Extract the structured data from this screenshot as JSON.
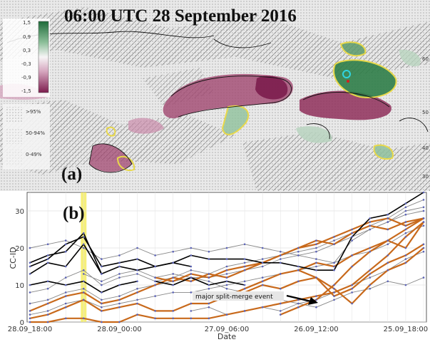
{
  "map_panel": {
    "title": "06:00 UTC 28 September 2016",
    "panel_label": "(a)",
    "colorbar": {
      "ticks": [
        "1,5",
        "0,9",
        "0,3",
        "-0,3",
        "-0,9",
        "-1,5"
      ],
      "colors": [
        "#1f6b3a",
        "#5c9a6b",
        "#b9d4bf",
        "#f7f5f6",
        "#d6a7bf",
        "#7c1d4e"
      ]
    },
    "stipple_legend": [
      ">95%",
      "50-94%",
      "0-49%"
    ],
    "lat_ticks": [
      "60",
      "50",
      "40",
      "30"
    ]
  },
  "timeline_panel": {
    "panel_label": "(b)",
    "annotation": "major split-merge event"
  },
  "chart_data": {
    "type": "line",
    "xlabel": "Date",
    "ylabel": "CC-ID",
    "x_ticks": [
      "28.09_18:00",
      "28.09_00:00",
      "27.09_06:00",
      "26.09_12:00",
      "25.09_18:00"
    ],
    "y_ticks": [
      0,
      10,
      20,
      30
    ],
    "ylim": [
      0,
      35
    ],
    "highlight_column_index": 3,
    "grid": true,
    "colors": {
      "main_track": "#000000",
      "split_merge": "#c8691b",
      "other": "#888888",
      "highlight": "#f4ec62"
    },
    "series": [
      {
        "role": "main",
        "x": [
          0,
          1,
          2,
          3,
          4,
          5,
          6,
          7,
          8,
          9,
          10,
          11,
          12,
          13,
          14,
          15,
          16,
          17,
          18,
          19,
          20,
          21,
          22
        ],
        "y": [
          15,
          17,
          21,
          23,
          15,
          16,
          17,
          15,
          16,
          18,
          17,
          17,
          17,
          16,
          16,
          15,
          14,
          14,
          23,
          28,
          29,
          32,
          35
        ]
      },
      {
        "role": "main",
        "x": [
          0,
          1,
          2,
          3,
          4,
          5,
          6,
          7,
          8,
          9
        ],
        "y": [
          16,
          18,
          19,
          24,
          13,
          15,
          14,
          15,
          16,
          15
        ]
      },
      {
        "role": "main",
        "x": [
          0,
          1,
          2,
          3,
          4
        ],
        "y": [
          13,
          16,
          15,
          21,
          13
        ]
      },
      {
        "role": "main",
        "x": [
          0,
          1,
          2,
          3,
          4,
          5,
          6
        ],
        "y": [
          10,
          11,
          10,
          11,
          8,
          10,
          11
        ]
      },
      {
        "role": "main",
        "x": [
          7,
          8,
          9,
          10,
          11,
          12
        ],
        "y": [
          11,
          10,
          12,
          10,
          11,
          10
        ]
      },
      {
        "role": "split",
        "x": [
          0,
          1,
          2,
          3,
          4,
          5,
          6,
          7,
          8,
          9,
          10,
          11,
          12,
          13,
          14,
          15,
          16,
          17,
          18,
          19,
          20,
          21,
          22
        ],
        "y": [
          0,
          0,
          1,
          1,
          0,
          0,
          2,
          1,
          1,
          1,
          1,
          2,
          3,
          4,
          5,
          6,
          7,
          8,
          10,
          14,
          18,
          23,
          27
        ]
      },
      {
        "role": "split",
        "x": [
          0,
          1,
          2,
          3,
          4,
          5,
          6,
          7,
          8,
          9,
          10,
          11,
          12,
          13,
          14,
          15,
          16,
          17,
          18,
          19,
          20,
          21,
          22
        ],
        "y": [
          1,
          2,
          4,
          6,
          3,
          4,
          5,
          3,
          3,
          5,
          5,
          7,
          9,
          11,
          13,
          14,
          16,
          15,
          18,
          20,
          22,
          25,
          28
        ]
      },
      {
        "role": "split",
        "x": [
          0,
          1,
          2,
          3,
          4,
          5,
          6,
          7,
          8,
          9,
          10,
          11,
          12,
          13,
          14,
          15,
          16,
          17,
          18,
          19,
          20,
          21,
          22
        ],
        "y": [
          3,
          5,
          7,
          8,
          5,
          6,
          8,
          10,
          12,
          11,
          13,
          12,
          14,
          16,
          18,
          20,
          22,
          21,
          24,
          26,
          25,
          27,
          28
        ]
      },
      {
        "role": "split",
        "x": [
          7,
          8,
          9,
          10,
          11,
          12,
          13,
          14,
          15,
          16,
          17,
          18,
          19,
          20,
          21,
          22
        ],
        "y": [
          12,
          11,
          13,
          12,
          14,
          15,
          16,
          18,
          20,
          21,
          23,
          25,
          27,
          28,
          26,
          28
        ]
      },
      {
        "role": "split",
        "x": [
          12,
          13,
          14,
          15,
          16,
          17,
          18,
          19,
          20,
          21,
          22
        ],
        "y": [
          8,
          10,
          9,
          11,
          12,
          7,
          9,
          13,
          16,
          18,
          21
        ]
      },
      {
        "role": "split",
        "x": [
          14,
          15,
          16,
          17,
          18,
          19,
          20,
          21,
          22
        ],
        "y": [
          2,
          4,
          6,
          10,
          15,
          19,
          22,
          20,
          27
        ]
      },
      {
        "role": "split",
        "x": [
          15,
          16,
          17,
          18,
          19,
          20,
          21,
          22
        ],
        "y": [
          14,
          12,
          9,
          5,
          10,
          14,
          16,
          20
        ]
      },
      {
        "role": "other",
        "x": [
          0,
          1,
          2,
          3,
          4,
          5,
          6,
          7,
          8,
          9,
          10,
          11,
          12,
          13,
          14,
          15,
          16,
          17,
          18,
          19,
          20,
          21,
          22
        ],
        "y": [
          8,
          9,
          12,
          14,
          10,
          12,
          13,
          11,
          12,
          14,
          13,
          15,
          16,
          17,
          18,
          19,
          20,
          22,
          24,
          26,
          28,
          31,
          33
        ]
      },
      {
        "role": "other",
        "x": [
          0,
          1,
          2,
          3,
          4,
          5,
          6,
          7,
          8,
          9,
          10,
          11,
          12,
          13,
          14,
          15,
          16,
          17,
          18,
          19,
          20,
          21,
          22
        ],
        "y": [
          5,
          6,
          8,
          9,
          6,
          7,
          9,
          10,
          11,
          12,
          12,
          13,
          14,
          15,
          17,
          18,
          19,
          21,
          23,
          25,
          27,
          30,
          31
        ]
      },
      {
        "role": "other",
        "x": [
          0,
          1,
          2,
          3,
          4,
          5,
          6,
          7,
          8,
          9,
          10,
          11,
          12,
          13,
          14,
          15,
          16,
          17,
          18,
          19,
          20,
          21,
          22
        ],
        "y": [
          2,
          3,
          5,
          6,
          4,
          5,
          6,
          7,
          8,
          8,
          9,
          10,
          11,
          12,
          13,
          14,
          15,
          16,
          18,
          19,
          21,
          24,
          26
        ]
      },
      {
        "role": "other",
        "x": [
          0,
          1,
          2,
          3,
          4,
          5,
          6,
          7,
          8,
          9,
          10,
          11,
          12,
          13,
          14,
          15,
          16,
          17,
          18,
          19,
          20,
          21,
          22
        ],
        "y": [
          20,
          21,
          22,
          20,
          17,
          18,
          20,
          18,
          19,
          20,
          19,
          20,
          21,
          20,
          19,
          18,
          17,
          16,
          22,
          25,
          27,
          29,
          30
        ]
      },
      {
        "role": "other",
        "x": [
          3,
          4,
          5,
          6,
          7,
          8,
          9,
          10,
          11,
          12,
          13,
          14,
          15,
          16,
          17,
          18,
          19,
          20,
          21,
          22
        ],
        "y": [
          13,
          11,
          13,
          14,
          12,
          13,
          12,
          11,
          9,
          8,
          7,
          6,
          5,
          6,
          8,
          10,
          12,
          14,
          17,
          19
        ]
      },
      {
        "role": "other",
        "x": [
          9,
          10,
          11,
          12,
          13,
          14,
          15,
          16,
          17,
          18,
          19,
          20,
          21,
          22
        ],
        "y": [
          3,
          4,
          2,
          3,
          4,
          3,
          5,
          4,
          6,
          8,
          9,
          11,
          10,
          12
        ]
      }
    ]
  }
}
